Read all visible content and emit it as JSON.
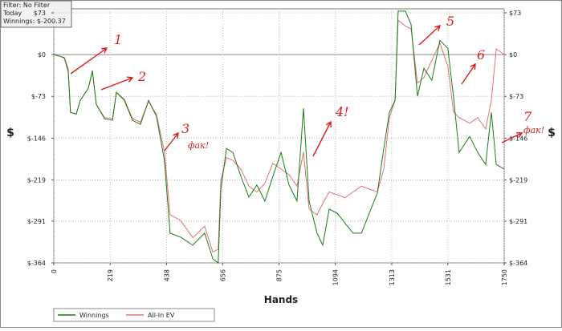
{
  "chart_data": {
    "type": "line",
    "info": [
      "Filter: No Filter",
      "Today",
      "Winnings: $-200.37"
    ],
    "x_label": "Hands",
    "y_label": "$",
    "x": [
      0,
      25,
      41,
      56,
      65,
      87,
      103,
      134,
      150,
      165,
      197,
      228,
      243,
      274,
      306,
      337,
      368,
      399,
      430,
      452,
      493,
      540,
      586,
      618,
      639,
      649,
      671,
      696,
      727,
      758,
      789,
      820,
      851,
      883,
      914,
      945,
      970,
      992,
      1023,
      1045,
      1070,
      1101,
      1132,
      1163,
      1195,
      1226,
      1257,
      1282,
      1304,
      1326,
      1338,
      1366,
      1388,
      1413,
      1438,
      1469,
      1500,
      1531,
      1553,
      1575,
      1616,
      1647,
      1678,
      1700,
      1719,
      1750
    ],
    "series": [
      {
        "name": "Winnings",
        "color": "#1d7a1d",
        "values": [
          0,
          -3,
          -6,
          -30,
          -101,
          -104,
          -80,
          -59,
          -28,
          -87,
          -112,
          -115,
          -66,
          -80,
          -115,
          -122,
          -80,
          -108,
          -185,
          -312,
          -319,
          -333,
          -312,
          -357,
          -364,
          -235,
          -164,
          -171,
          -213,
          -249,
          -228,
          -256,
          -213,
          -171,
          -228,
          -256,
          -94,
          -256,
          -312,
          -333,
          -270,
          -277,
          -295,
          -312,
          -312,
          -277,
          -242,
          -164,
          -101,
          -80,
          76,
          76,
          53,
          -73,
          -24,
          -45,
          25,
          11,
          -73,
          -171,
          -143,
          -171,
          -192,
          -101,
          -192,
          -200
        ]
      },
      {
        "name": "All-In EV",
        "color": "#e07272",
        "values": [
          0,
          -3,
          -5,
          -25,
          -101,
          -104,
          -80,
          -59,
          -30,
          -87,
          -110,
          -112,
          -66,
          -78,
          -112,
          -118,
          -82,
          -105,
          -170,
          -280,
          -290,
          -320,
          -300,
          -345,
          -340,
          -220,
          -180,
          -185,
          -200,
          -230,
          -240,
          -225,
          -190,
          -200,
          -210,
          -230,
          -170,
          -270,
          -280,
          -260,
          -240,
          -245,
          -250,
          -240,
          -230,
          -235,
          -240,
          -200,
          -110,
          -80,
          60,
          50,
          45,
          -50,
          -40,
          -10,
          20,
          -20,
          -100,
          -110,
          -120,
          -110,
          -130,
          -80,
          10,
          0
        ]
      }
    ],
    "xlim": [
      0,
      1750
    ],
    "xticks": [
      0,
      219,
      438,
      656,
      875,
      1094,
      1313,
      1531,
      1750
    ],
    "ylim": [
      -364,
      80
    ],
    "yticks": [
      {
        "value": 73,
        "label": "$73"
      },
      {
        "value": 0,
        "label": "$0"
      },
      {
        "value": -73,
        "label": "$-73"
      },
      {
        "value": -146,
        "label": "$-146"
      },
      {
        "value": -219,
        "label": "$-219"
      },
      {
        "value": -291,
        "label": "$-291"
      },
      {
        "value": -364,
        "label": "$-364"
      }
    ],
    "grid": true,
    "annotations": [
      "1",
      "2",
      "3",
      "фак!",
      "4!",
      "5",
      "6",
      "7",
      "фак!"
    ]
  }
}
